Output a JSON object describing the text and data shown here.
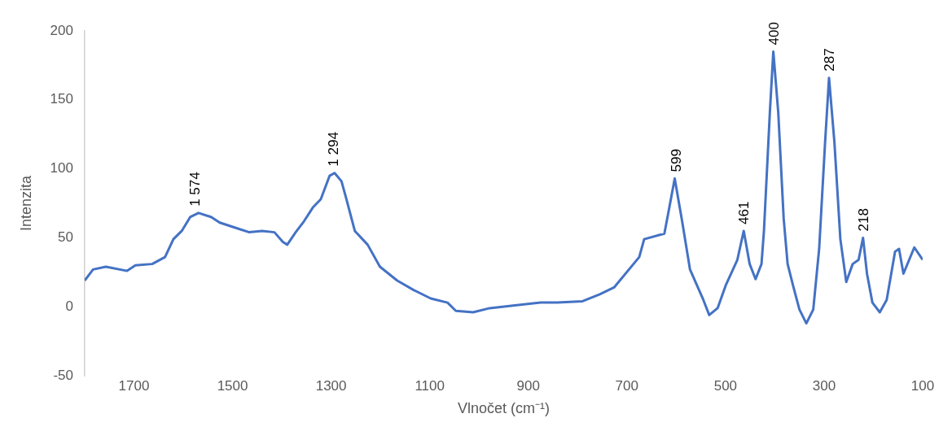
{
  "chart_data": {
    "type": "line",
    "xlabel": "Vlnočet (cm⁻¹)",
    "ylabel": "Intenzita",
    "xlim": [
      1800,
      100
    ],
    "xticks": [
      1700,
      1500,
      1300,
      1100,
      900,
      700,
      500,
      300,
      100
    ],
    "ylim": [
      -50,
      200
    ],
    "yticks": [
      -50,
      0,
      50,
      100,
      150,
      200
    ],
    "grid": false,
    "legend": false,
    "marker": "none",
    "line_style": "solid",
    "series": [
      {
        "color": "#4472c4",
        "x": [
          1800,
          1783,
          1757,
          1714,
          1697,
          1663,
          1637,
          1620,
          1603,
          1586,
          1569,
          1543,
          1526,
          1492,
          1466,
          1440,
          1415,
          1398,
          1389,
          1372,
          1355,
          1337,
          1321,
          1303,
          1293,
          1279,
          1269,
          1252,
          1226,
          1201,
          1166,
          1132,
          1098,
          1064,
          1047,
          1012,
          978,
          927,
          875,
          841,
          790,
          755,
          726,
          675,
          665,
          624,
          615,
          603,
          588,
          572,
          545,
          533,
          516,
          499,
          476,
          463,
          451,
          439,
          427,
          422,
          410,
          403,
          393,
          382,
          374,
          362,
          350,
          336,
          322,
          310,
          298,
          290,
          279,
          267,
          255,
          242,
          230,
          221,
          213,
          202,
          187,
          173,
          156,
          148,
          139,
          117,
          100
        ],
        "values": [
          19,
          27,
          29,
          26,
          30,
          31,
          36,
          49,
          55,
          65,
          68,
          65,
          61,
          57,
          54,
          55,
          54,
          47,
          45,
          54,
          62,
          72,
          78,
          95,
          97,
          91,
          78,
          55,
          45,
          29,
          19,
          12,
          6,
          3,
          -3,
          -4,
          -1,
          1,
          3,
          3,
          4,
          9,
          14,
          36,
          49,
          53,
          70,
          93,
          62,
          27,
          5,
          -6,
          -1,
          16,
          34,
          55,
          31,
          20,
          31,
          55,
          141,
          185,
          141,
          64,
          31,
          14,
          -2,
          -12,
          -2,
          42,
          119,
          166,
          119,
          49,
          18,
          31,
          34,
          50,
          24,
          3,
          -4,
          5,
          40,
          42,
          24,
          43,
          34
        ]
      }
    ],
    "annotations": [
      {
        "text": "1 574",
        "x": 1574,
        "y": 68
      },
      {
        "text": "1 294",
        "x": 1294,
        "y": 97
      },
      {
        "text": "599",
        "x": 599,
        "y": 93
      },
      {
        "text": "461",
        "x": 461,
        "y": 55
      },
      {
        "text": "400",
        "x": 400,
        "y": 185
      },
      {
        "text": "287",
        "x": 287,
        "y": 166
      },
      {
        "text": "218",
        "x": 218,
        "y": 50
      }
    ]
  }
}
